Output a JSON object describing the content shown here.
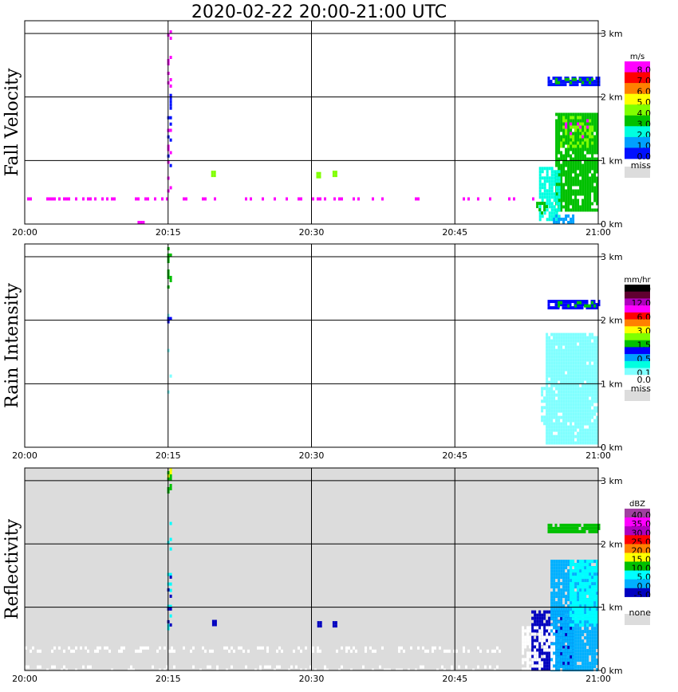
{
  "page_title": "2020-02-22   20:00-21:00 UTC",
  "x_axis": {
    "ticks": [
      "20:00",
      "20:15",
      "20:30",
      "20:45",
      "21:00"
    ],
    "range_minutes": [
      0,
      60
    ]
  },
  "y_axis": {
    "ticks": [
      "0 km",
      "1 km",
      "2 km",
      "3 km"
    ],
    "range_km": [
      0,
      3.2
    ]
  },
  "chart_data": [
    {
      "type": "heatmap",
      "title": "Fall Velocity",
      "ylabel": "Fall Velocity",
      "legend_unit": "m/s",
      "background": "#ffffff",
      "missing_label": "miss",
      "legend": [
        {
          "label": "8.0",
          "color": "#ff00ff"
        },
        {
          "label": "7.0",
          "color": "#ff0000"
        },
        {
          "label": "6.0",
          "color": "#ff8000"
        },
        {
          "label": "5.0",
          "color": "#ffff00"
        },
        {
          "label": "4.0",
          "color": "#80ff00"
        },
        {
          "label": "3.0",
          "color": "#00c000"
        },
        {
          "label": "2.0",
          "color": "#00ffe0"
        },
        {
          "label": "1.0",
          "color": "#00a0ff"
        },
        {
          "label": "0.0",
          "color": "#0010ff"
        }
      ],
      "features": [
        {
          "t0": 54.7,
          "t1": 60,
          "z0": 2.2,
          "z1": 2.32,
          "color": "#0010ff",
          "density": 0.85
        },
        {
          "t0": 55.5,
          "t1": 60,
          "z0": 2.22,
          "z1": 2.3,
          "color": "#00c000",
          "density": 0.5
        },
        {
          "t0": 55.5,
          "t1": 59.8,
          "z0": 0.2,
          "z1": 1.75,
          "color": "#00c000",
          "density": 0.9
        },
        {
          "t0": 56.0,
          "t1": 59.5,
          "z0": 1.2,
          "z1": 1.7,
          "color": "#80ff00",
          "density": 0.3
        },
        {
          "t0": 56.5,
          "t1": 59.0,
          "z0": 1.35,
          "z1": 1.7,
          "color": "#ff00ff",
          "density": 0.15
        },
        {
          "t0": 53.8,
          "t1": 56.0,
          "z0": 0.05,
          "z1": 0.9,
          "color": "#00ffe0",
          "density": 0.75
        },
        {
          "t0": 55.0,
          "t1": 57.5,
          "z0": 0.0,
          "z1": 0.15,
          "color": "#00a0ff",
          "density": 0.6
        },
        {
          "t0": 53.5,
          "t1": 54.6,
          "z0": 0.18,
          "z1": 0.4,
          "color": "#00c000",
          "density": 0.35
        },
        {
          "t0": 14.9,
          "t1": 15.2,
          "z0": 2.0,
          "z1": 3.1,
          "color": "#ff00ff",
          "density": 0.35
        },
        {
          "t0": 14.9,
          "t1": 15.2,
          "z0": 0.8,
          "z1": 2.1,
          "color": "#0010ff",
          "density": 0.2
        },
        {
          "t0": 14.9,
          "t1": 15.2,
          "z0": 0.35,
          "z1": 1.6,
          "color": "#ff00ff",
          "density": 0.2
        },
        {
          "t0": 0.0,
          "t1": 54.0,
          "z0": 0.38,
          "z1": 0.42,
          "color": "#ff00ff",
          "density": 0.22
        },
        {
          "t0": 11.8,
          "t1": 12.5,
          "z0": 0.02,
          "z1": 0.05,
          "color": "#ff00ff",
          "density": 0.8
        },
        {
          "t0": 19.5,
          "t1": 19.8,
          "z0": 0.76,
          "z1": 0.84,
          "color": "#80ff00",
          "density": 1.0
        },
        {
          "t0": 30.5,
          "t1": 30.8,
          "z0": 0.74,
          "z1": 0.82,
          "color": "#80ff00",
          "density": 1.0
        },
        {
          "t0": 32.2,
          "t1": 32.5,
          "z0": 0.76,
          "z1": 0.84,
          "color": "#80ff00",
          "density": 1.0
        }
      ]
    },
    {
      "type": "heatmap",
      "title": "Rain Intensity",
      "ylabel": "Rain Intensity",
      "legend_unit": "mm/hr",
      "background": "#ffffff",
      "missing_label": "miss",
      "legend": [
        {
          "label": "48.0",
          "color": "#000000"
        },
        {
          "label": "",
          "color": "#600030"
        },
        {
          "label": "12.0",
          "color": "#b000c0"
        },
        {
          "label": "",
          "color": "#ff00ff"
        },
        {
          "label": "6.0",
          "color": "#ff0000"
        },
        {
          "label": "",
          "color": "#ff8000"
        },
        {
          "label": "3.0",
          "color": "#ffff00"
        },
        {
          "label": "",
          "color": "#80ff00"
        },
        {
          "label": "1.5",
          "color": "#00c000"
        },
        {
          "label": "",
          "color": "#0000ff"
        },
        {
          "label": "0.5",
          "color": "#00a0ff"
        },
        {
          "label": "",
          "color": "#00ffe0"
        },
        {
          "label": "0.1",
          "color": "#80ffff"
        },
        {
          "label": "0.0",
          "color": "#ffffff"
        }
      ],
      "features": [
        {
          "t0": 54.5,
          "t1": 60,
          "z0": 0.05,
          "z1": 1.8,
          "color": "#80ffff",
          "density": 0.95
        },
        {
          "t0": 54.7,
          "t1": 60,
          "z0": 2.2,
          "z1": 2.32,
          "color": "#0000ff",
          "density": 0.85
        },
        {
          "t0": 55.5,
          "t1": 60,
          "z0": 2.22,
          "z1": 2.3,
          "color": "#00c000",
          "density": 0.45
        },
        {
          "t0": 54.0,
          "t1": 55.0,
          "z0": 0.3,
          "z1": 0.95,
          "color": "#80ffff",
          "density": 0.4
        },
        {
          "t0": 14.9,
          "t1": 15.2,
          "z0": 2.5,
          "z1": 3.2,
          "color": "#00c000",
          "density": 0.4
        },
        {
          "t0": 14.9,
          "t1": 15.2,
          "z0": 0.6,
          "z1": 2.1,
          "color": "#80ffff",
          "density": 0.15
        },
        {
          "t0": 14.9,
          "t1": 15.2,
          "z0": 1.85,
          "z1": 2.05,
          "color": "#0000ff",
          "density": 0.3
        }
      ]
    },
    {
      "type": "heatmap",
      "title": "Reflectivity",
      "ylabel": "Reflectivity",
      "legend_unit": "dBZ",
      "background": "#dcdcdc",
      "missing_label": "none",
      "legend": [
        {
          "label": "40.0",
          "color": "#a040a0"
        },
        {
          "label": "35.0",
          "color": "#ff00ff"
        },
        {
          "label": "30.0",
          "color": "#b000c0"
        },
        {
          "label": "25.0",
          "color": "#ff0000"
        },
        {
          "label": "20.0",
          "color": "#ff8000"
        },
        {
          "label": "15.0",
          "color": "#ffff00"
        },
        {
          "label": "10.0",
          "color": "#00c000"
        },
        {
          "label": "5.0",
          "color": "#00ffff"
        },
        {
          "label": "0.0",
          "color": "#00b0ff"
        },
        {
          "label": "-5.0",
          "color": "#0000c0"
        },
        {
          "label": "",
          "color": "#ffffff"
        }
      ],
      "features": [
        {
          "t0": 53.0,
          "t1": 57.5,
          "z0": 0.0,
          "z1": 0.95,
          "color": "#0000c0",
          "density": 0.9
        },
        {
          "t0": 55.0,
          "t1": 59.8,
          "z0": 0.0,
          "z1": 1.75,
          "color": "#00b0ff",
          "density": 0.9
        },
        {
          "t0": 57.0,
          "t1": 59.8,
          "z0": 0.7,
          "z1": 1.75,
          "color": "#00ffff",
          "density": 0.8
        },
        {
          "t0": 54.7,
          "t1": 60,
          "z0": 2.2,
          "z1": 2.32,
          "color": "#00c000",
          "density": 0.85
        },
        {
          "t0": 52.0,
          "t1": 55.5,
          "z0": 0.0,
          "z1": 0.7,
          "color": "#ffffff",
          "density": 0.6
        },
        {
          "t0": 0.0,
          "t1": 50.0,
          "z0": 0.3,
          "z1": 0.38,
          "color": "#ffffff",
          "density": 0.25
        },
        {
          "t0": 0.0,
          "t1": 50.0,
          "z0": 0.0,
          "z1": 0.08,
          "color": "#ffffff",
          "density": 0.2
        },
        {
          "t0": 14.9,
          "t1": 15.2,
          "z0": 2.8,
          "z1": 3.2,
          "color": "#00c000",
          "density": 0.5
        },
        {
          "t0": 14.9,
          "t1": 15.2,
          "z0": 3.05,
          "z1": 3.2,
          "color": "#ffff00",
          "density": 0.6
        },
        {
          "t0": 14.9,
          "t1": 15.2,
          "z0": 0.6,
          "z1": 2.5,
          "color": "#00ffff",
          "density": 0.2
        },
        {
          "t0": 14.9,
          "t1": 15.2,
          "z0": 0.6,
          "z1": 1.5,
          "color": "#0000c0",
          "density": 0.2
        },
        {
          "t0": 19.6,
          "t1": 19.9,
          "z0": 0.74,
          "z1": 0.8,
          "color": "#0000c0",
          "density": 1.0
        },
        {
          "t0": 30.6,
          "t1": 30.9,
          "z0": 0.72,
          "z1": 0.78,
          "color": "#0000c0",
          "density": 1.0
        },
        {
          "t0": 32.2,
          "t1": 32.5,
          "z0": 0.72,
          "z1": 0.78,
          "color": "#0000c0",
          "density": 1.0
        }
      ]
    }
  ]
}
